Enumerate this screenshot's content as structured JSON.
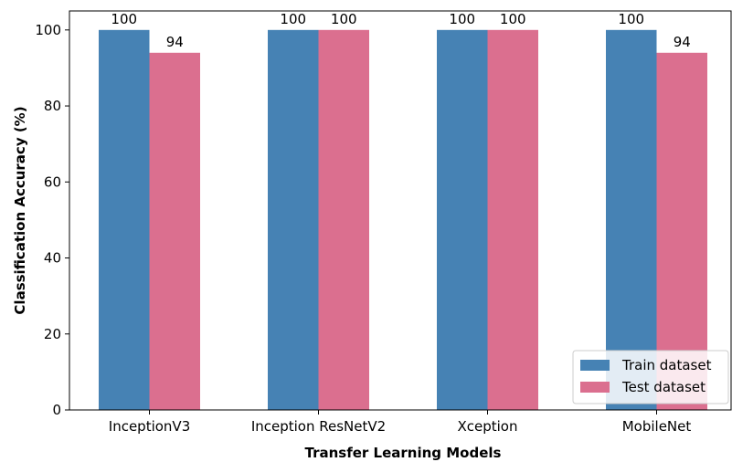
{
  "chart_data": {
    "type": "bar",
    "categories": [
      "InceptionV3",
      "Inception ResNetV2",
      "Xception",
      "MobileNet"
    ],
    "series": [
      {
        "name": "Train dataset",
        "values": [
          100,
          100,
          100,
          100
        ],
        "color": "#4682b4"
      },
      {
        "name": "Test dataset",
        "values": [
          94,
          100,
          100,
          94
        ],
        "color": "#db6f8f"
      }
    ],
    "xlabel": "Transfer Learning Models",
    "ylabel": "Classification Accuracy (%)",
    "ylim": [
      0,
      105
    ],
    "yticks": [
      0,
      20,
      40,
      60,
      80,
      100
    ],
    "grid": false,
    "legend_position": "bottom-right"
  }
}
